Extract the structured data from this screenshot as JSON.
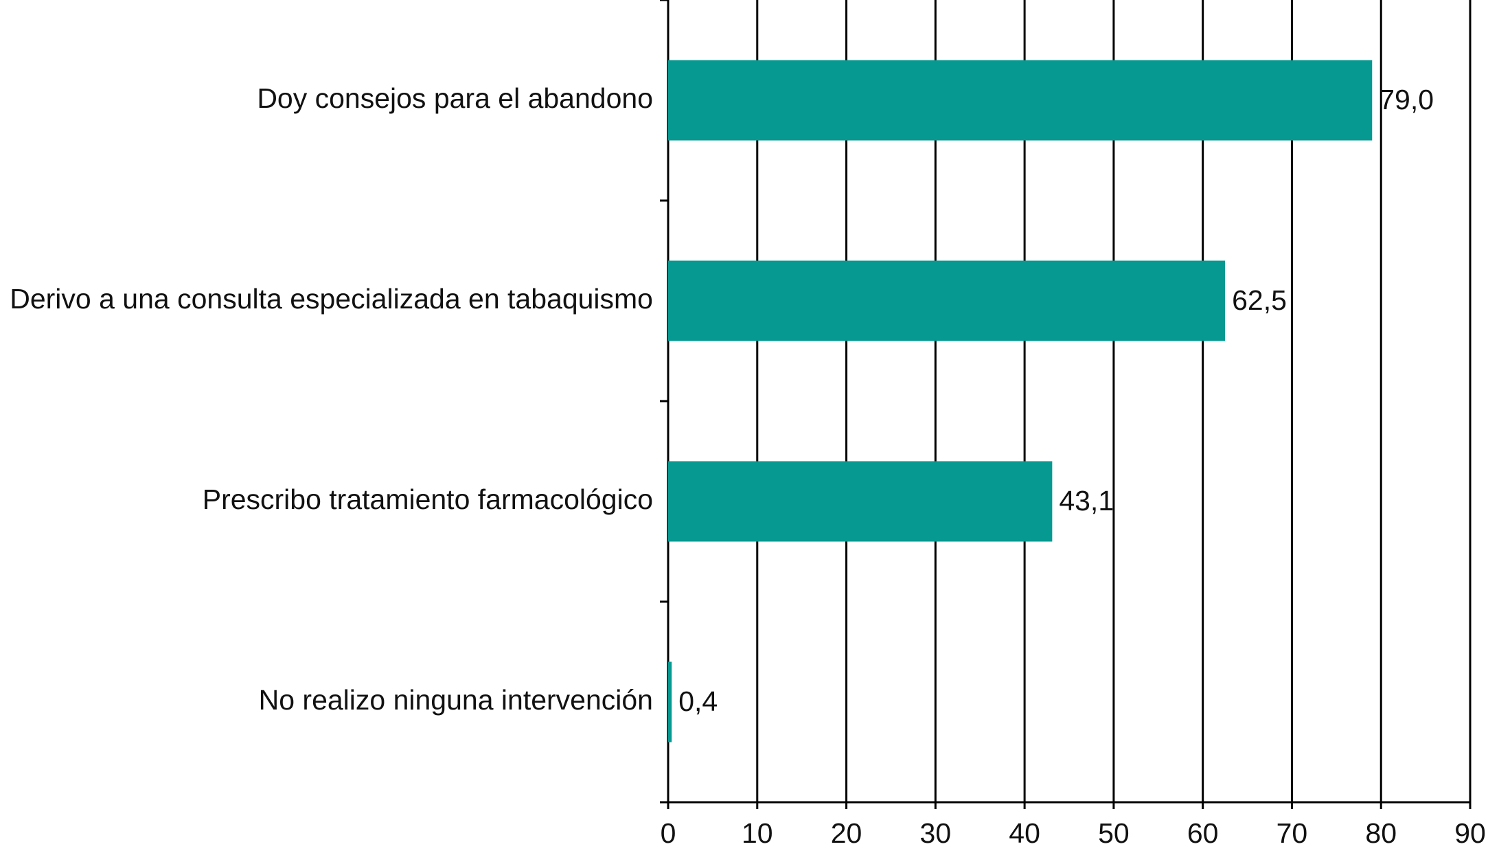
{
  "chart_data": {
    "type": "bar",
    "orientation": "horizontal",
    "categories": [
      "Doy consejos para el abandono",
      "Derivo a una consulta especializada en tabaquismo",
      "Prescribo tratamiento farmacológico",
      "No realizo ninguna intervención"
    ],
    "values": [
      79.0,
      62.5,
      43.1,
      0.4
    ],
    "value_labels": [
      "79,0",
      "62,5",
      "43,1",
      "0,4"
    ],
    "color": "#069991",
    "xlim": [
      0,
      90
    ],
    "xticks": [
      0,
      10,
      20,
      30,
      40,
      50,
      60,
      70,
      80,
      90
    ],
    "grid": true
  }
}
